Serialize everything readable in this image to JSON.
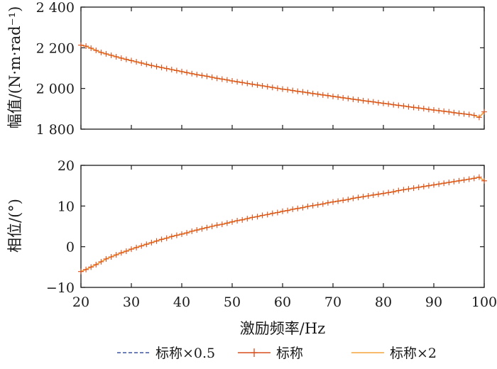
{
  "colors": {
    "nominal_x05": "#3b55a0",
    "nominal": "#d94f1e",
    "nominal_x2": "#f5a33a",
    "axis": "#1a1a1a"
  },
  "legend": {
    "position": "bottom",
    "items": [
      {
        "label": "标称×0.5",
        "style": "dashed",
        "color_key": "nominal_x05"
      },
      {
        "label": "标称",
        "style": "solid-with-plus-markers",
        "color_key": "nominal"
      },
      {
        "label": "标称×2",
        "style": "solid",
        "color_key": "nominal_x2"
      }
    ]
  },
  "chart_data": [
    {
      "type": "line",
      "panel": "top",
      "title": "",
      "xlabel": "",
      "ylabel": "幅值/(N·m·rad⁻¹)",
      "xlim": [
        20,
        100
      ],
      "ylim": [
        1800,
        2400
      ],
      "yticks": [
        1800,
        2000,
        2200,
        2400
      ],
      "ytick_labels": [
        "1 800",
        "2 000",
        "2 200",
        "2 400"
      ],
      "grid": false,
      "x": [
        20,
        21,
        22,
        23,
        24,
        25,
        26,
        27,
        28,
        29,
        30,
        31,
        32,
        33,
        34,
        35,
        36,
        37,
        38,
        39,
        40,
        41,
        42,
        43,
        44,
        45,
        46,
        47,
        48,
        49,
        50,
        51,
        52,
        53,
        54,
        55,
        56,
        57,
        58,
        59,
        60,
        61,
        62,
        63,
        64,
        65,
        66,
        67,
        68,
        69,
        70,
        71,
        72,
        73,
        74,
        75,
        76,
        77,
        78,
        79,
        80,
        81,
        82,
        83,
        84,
        85,
        86,
        87,
        88,
        89,
        90,
        91,
        92,
        93,
        94,
        95,
        96,
        97,
        98,
        99,
        100
      ],
      "series": [
        {
          "name": "标称×0.5",
          "values": [
            2213,
            2208,
            2198,
            2187,
            2177,
            2170,
            2163,
            2156,
            2149,
            2143,
            2137,
            2131,
            2125,
            2119,
            2113,
            2108,
            2103,
            2098,
            2093,
            2088,
            2083,
            2078,
            2073,
            2068,
            2064,
            2060,
            2055,
            2050,
            2046,
            2042,
            2037,
            2033,
            2029,
            2025,
            2021,
            2017,
            2013,
            2009,
            2005,
            2001,
            1997,
            1994,
            1990,
            1986,
            1983,
            1979,
            1975,
            1972,
            1968,
            1965,
            1961,
            1958,
            1954,
            1951,
            1947,
            1944,
            1940,
            1937,
            1934,
            1930,
            1927,
            1924,
            1920,
            1917,
            1914,
            1910,
            1907,
            1904,
            1901,
            1897,
            1894,
            1891,
            1888,
            1885,
            1881,
            1878,
            1875,
            1872,
            1868,
            1858,
            1885
          ]
        },
        {
          "name": "标称",
          "values": [
            2213,
            2208,
            2198,
            2187,
            2177,
            2170,
            2163,
            2156,
            2149,
            2143,
            2137,
            2131,
            2125,
            2119,
            2113,
            2108,
            2103,
            2098,
            2093,
            2088,
            2083,
            2078,
            2073,
            2068,
            2064,
            2060,
            2055,
            2050,
            2046,
            2042,
            2037,
            2033,
            2029,
            2025,
            2021,
            2017,
            2013,
            2009,
            2005,
            2001,
            1997,
            1994,
            1990,
            1986,
            1983,
            1979,
            1975,
            1972,
            1968,
            1965,
            1961,
            1958,
            1954,
            1951,
            1947,
            1944,
            1940,
            1937,
            1934,
            1930,
            1927,
            1924,
            1920,
            1917,
            1914,
            1910,
            1907,
            1904,
            1901,
            1897,
            1894,
            1891,
            1888,
            1885,
            1881,
            1878,
            1875,
            1872,
            1868,
            1858,
            1885
          ]
        },
        {
          "name": "标称×2",
          "values": [
            2213,
            2208,
            2198,
            2187,
            2177,
            2170,
            2163,
            2156,
            2149,
            2143,
            2137,
            2131,
            2125,
            2119,
            2113,
            2108,
            2103,
            2098,
            2093,
            2088,
            2083,
            2078,
            2073,
            2068,
            2064,
            2060,
            2055,
            2050,
            2046,
            2042,
            2037,
            2033,
            2029,
            2025,
            2021,
            2017,
            2013,
            2009,
            2005,
            2001,
            1997,
            1994,
            1990,
            1986,
            1983,
            1979,
            1975,
            1972,
            1968,
            1965,
            1961,
            1958,
            1954,
            1951,
            1947,
            1944,
            1940,
            1937,
            1934,
            1930,
            1927,
            1924,
            1920,
            1917,
            1914,
            1910,
            1907,
            1904,
            1901,
            1897,
            1894,
            1891,
            1888,
            1885,
            1881,
            1878,
            1875,
            1872,
            1868,
            1858,
            1885
          ]
        }
      ]
    },
    {
      "type": "line",
      "panel": "bottom",
      "title": "",
      "xlabel": "激励频率/Hz",
      "ylabel": "相位/(°)",
      "xlim": [
        20,
        100
      ],
      "ylim": [
        -10,
        20
      ],
      "xticks": [
        20,
        30,
        40,
        50,
        60,
        70,
        80,
        90,
        100
      ],
      "yticks": [
        -10,
        0,
        10,
        20
      ],
      "ytick_labels": [
        "−10",
        "0",
        "10",
        "20"
      ],
      "grid": false,
      "x": [
        20,
        21,
        22,
        23,
        24,
        25,
        26,
        27,
        28,
        29,
        30,
        31,
        32,
        33,
        34,
        35,
        36,
        37,
        38,
        39,
        40,
        41,
        42,
        43,
        44,
        45,
        46,
        47,
        48,
        49,
        50,
        51,
        52,
        53,
        54,
        55,
        56,
        57,
        58,
        59,
        60,
        61,
        62,
        63,
        64,
        65,
        66,
        67,
        68,
        69,
        70,
        71,
        72,
        73,
        74,
        75,
        76,
        77,
        78,
        79,
        80,
        81,
        82,
        83,
        84,
        85,
        86,
        87,
        88,
        89,
        90,
        91,
        92,
        93,
        94,
        95,
        96,
        97,
        98,
        99,
        100
      ],
      "series": [
        {
          "name": "标称×0.5",
          "values": [
            -6.1,
            -5.6,
            -5.0,
            -4.4,
            -3.7,
            -3.0,
            -2.5,
            -2.0,
            -1.5,
            -1.1,
            -0.6,
            -0.2,
            0.2,
            0.6,
            1.0,
            1.4,
            1.8,
            2.1,
            2.5,
            2.8,
            3.1,
            3.4,
            3.8,
            4.1,
            4.4,
            4.7,
            5.0,
            5.3,
            5.5,
            5.8,
            6.1,
            6.4,
            6.6,
            6.9,
            7.2,
            7.4,
            7.7,
            7.9,
            8.2,
            8.4,
            8.7,
            8.9,
            9.2,
            9.4,
            9.6,
            9.9,
            10.1,
            10.3,
            10.5,
            10.8,
            11.0,
            11.2,
            11.4,
            11.6,
            11.9,
            12.1,
            12.3,
            12.5,
            12.7,
            12.9,
            13.1,
            13.3,
            13.5,
            13.8,
            14.0,
            14.2,
            14.4,
            14.6,
            14.8,
            15.0,
            15.2,
            15.4,
            15.6,
            15.8,
            16.0,
            16.2,
            16.4,
            16.6,
            16.8,
            17.1,
            16.2
          ]
        },
        {
          "name": "标称",
          "values": [
            -6.1,
            -5.6,
            -5.0,
            -4.4,
            -3.7,
            -3.0,
            -2.5,
            -2.0,
            -1.5,
            -1.1,
            -0.6,
            -0.2,
            0.2,
            0.6,
            1.0,
            1.4,
            1.8,
            2.1,
            2.5,
            2.8,
            3.1,
            3.4,
            3.8,
            4.1,
            4.4,
            4.7,
            5.0,
            5.3,
            5.5,
            5.8,
            6.1,
            6.4,
            6.6,
            6.9,
            7.2,
            7.4,
            7.7,
            7.9,
            8.2,
            8.4,
            8.7,
            8.9,
            9.2,
            9.4,
            9.6,
            9.9,
            10.1,
            10.3,
            10.5,
            10.8,
            11.0,
            11.2,
            11.4,
            11.6,
            11.9,
            12.1,
            12.3,
            12.5,
            12.7,
            12.9,
            13.1,
            13.3,
            13.5,
            13.8,
            14.0,
            14.2,
            14.4,
            14.6,
            14.8,
            15.0,
            15.2,
            15.4,
            15.6,
            15.8,
            16.0,
            16.2,
            16.4,
            16.6,
            16.8,
            17.1,
            16.2
          ]
        },
        {
          "name": "标称×2",
          "values": [
            -6.1,
            -5.6,
            -5.0,
            -4.4,
            -3.7,
            -3.0,
            -2.5,
            -2.0,
            -1.5,
            -1.1,
            -0.6,
            -0.2,
            0.2,
            0.6,
            1.0,
            1.4,
            1.8,
            2.1,
            2.5,
            2.8,
            3.1,
            3.4,
            3.8,
            4.1,
            4.4,
            4.7,
            5.0,
            5.3,
            5.5,
            5.8,
            6.1,
            6.4,
            6.6,
            6.9,
            7.2,
            7.4,
            7.7,
            7.9,
            8.2,
            8.4,
            8.7,
            8.9,
            9.2,
            9.4,
            9.6,
            9.9,
            10.1,
            10.3,
            10.5,
            10.8,
            11.0,
            11.2,
            11.4,
            11.6,
            11.9,
            12.1,
            12.3,
            12.5,
            12.7,
            12.9,
            13.1,
            13.3,
            13.5,
            13.8,
            14.0,
            14.2,
            14.4,
            14.6,
            14.8,
            15.0,
            15.2,
            15.4,
            15.6,
            15.8,
            16.0,
            16.2,
            16.4,
            16.6,
            16.8,
            17.1,
            16.2
          ]
        }
      ]
    }
  ]
}
